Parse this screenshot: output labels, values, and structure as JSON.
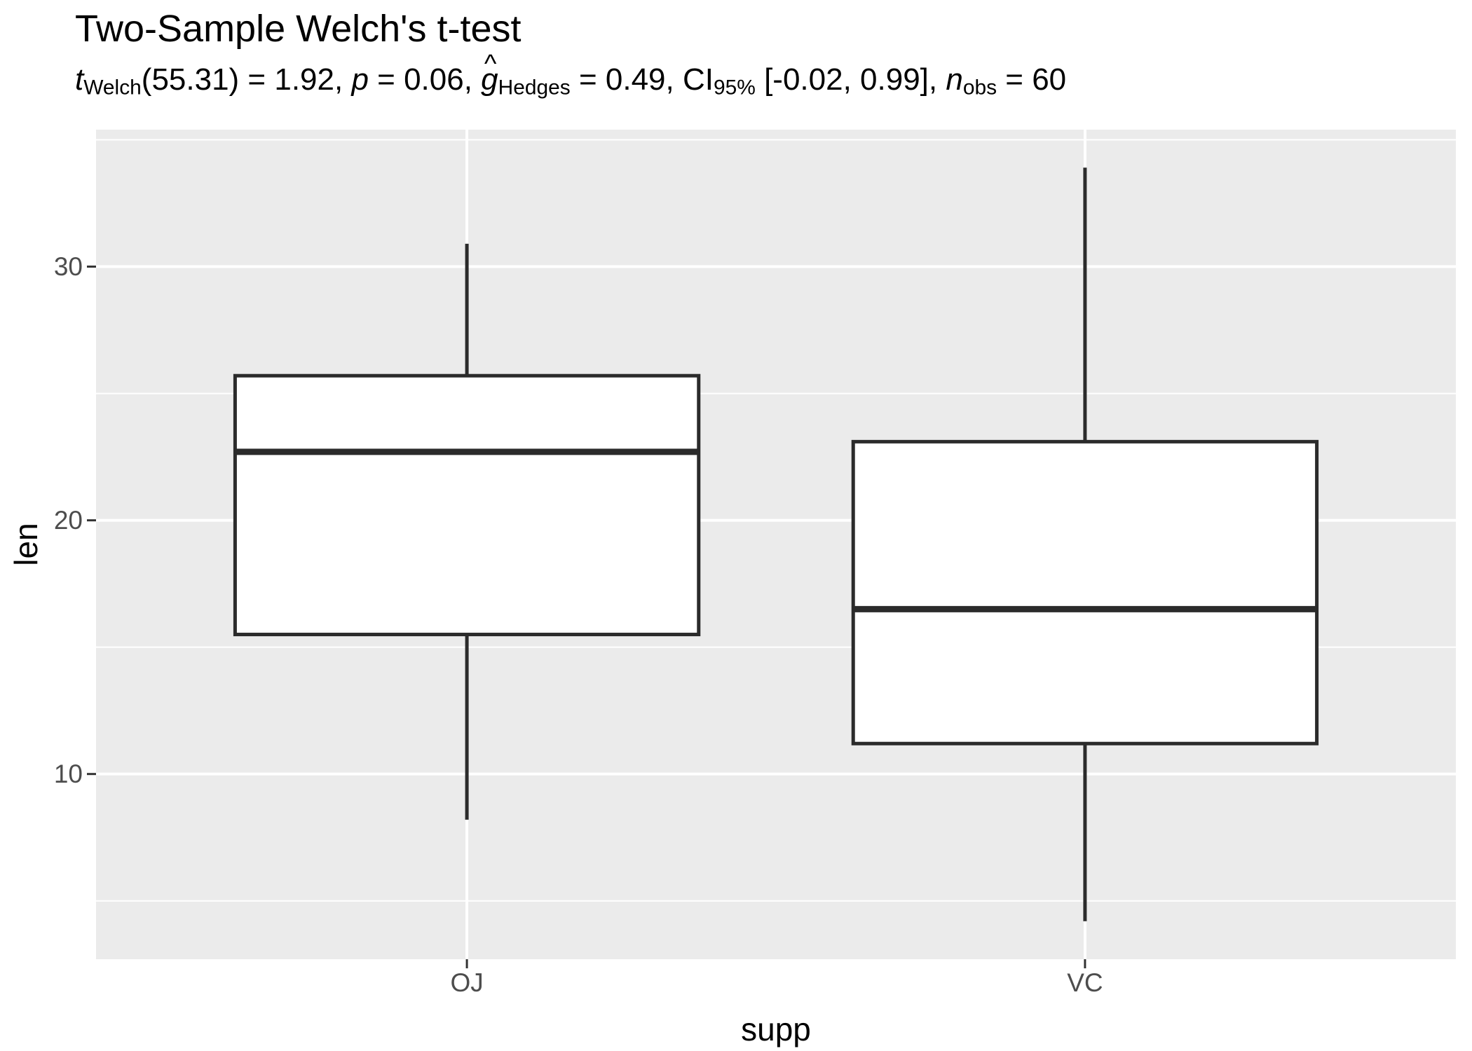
{
  "title": "Two-Sample Welch's t-test",
  "subtitle_plain": "t_Welch(55.31) = 1.92, p = 0.06, ĝ_Hedges = 0.49, CI_95% [-0.02, 0.99], n_obs = 60",
  "subtitle_segments": [
    {
      "text": "t",
      "style": "italic"
    },
    {
      "text": "Welch",
      "style": "sub"
    },
    {
      "text": "(55.31) = 1.92, ",
      "style": "normal"
    },
    {
      "text": "p",
      "style": "italic"
    },
    {
      "text": " = 0.06, ",
      "style": "normal"
    },
    {
      "text": "g",
      "style": "italic",
      "hat": true
    },
    {
      "text": "Hedges",
      "style": "sub"
    },
    {
      "text": " = 0.49, CI",
      "style": "normal"
    },
    {
      "text": "95%",
      "style": "sub"
    },
    {
      "text": " [-0.02, 0.99], ",
      "style": "normal"
    },
    {
      "text": "n",
      "style": "italic"
    },
    {
      "text": "obs",
      "style": "sub"
    },
    {
      "text": " = 60",
      "style": "normal"
    }
  ],
  "chart_data": {
    "type": "boxplot",
    "title": "Two-Sample Welch's t-test",
    "subtitle": "t_Welch(55.31) = 1.92, p = 0.06, ĝ_Hedges = 0.49, CI_95% [-0.02, 0.99], n_obs = 60",
    "xlabel": "supp",
    "ylabel": "len",
    "categories": [
      "OJ",
      "VC"
    ],
    "series": [
      {
        "name": "OJ",
        "whisker_low": 8.2,
        "q1": 15.5,
        "median": 22.7,
        "q3": 25.7,
        "whisker_high": 30.9
      },
      {
        "name": "VC",
        "whisker_low": 4.2,
        "q1": 11.2,
        "median": 16.5,
        "q3": 23.1,
        "whisker_high": 33.9
      }
    ],
    "y_ticks": [
      30,
      20,
      10
    ],
    "y_minor_ticks": [
      35,
      25,
      15,
      5
    ],
    "ylim": [
      2.7,
      35.4
    ],
    "grid": true,
    "legend": "none",
    "stats": {
      "test": "Welch two-sample t-test",
      "t": 1.92,
      "df": 55.31,
      "p": 0.06,
      "hedges_g": 0.49,
      "ci_level": "95%",
      "ci_low": -0.02,
      "ci_high": 0.99,
      "n_obs": 60
    }
  },
  "colors": {
    "panel_background": "#EBEBEB",
    "grid": "#FFFFFF",
    "box_border": "#2B2B2B",
    "box_fill": "#FFFFFF",
    "median": "#2B2B2B",
    "axis_text": "#4D4D4D",
    "axis_title": "#000000",
    "title_text": "#000000",
    "tick_mark": "#333333"
  }
}
